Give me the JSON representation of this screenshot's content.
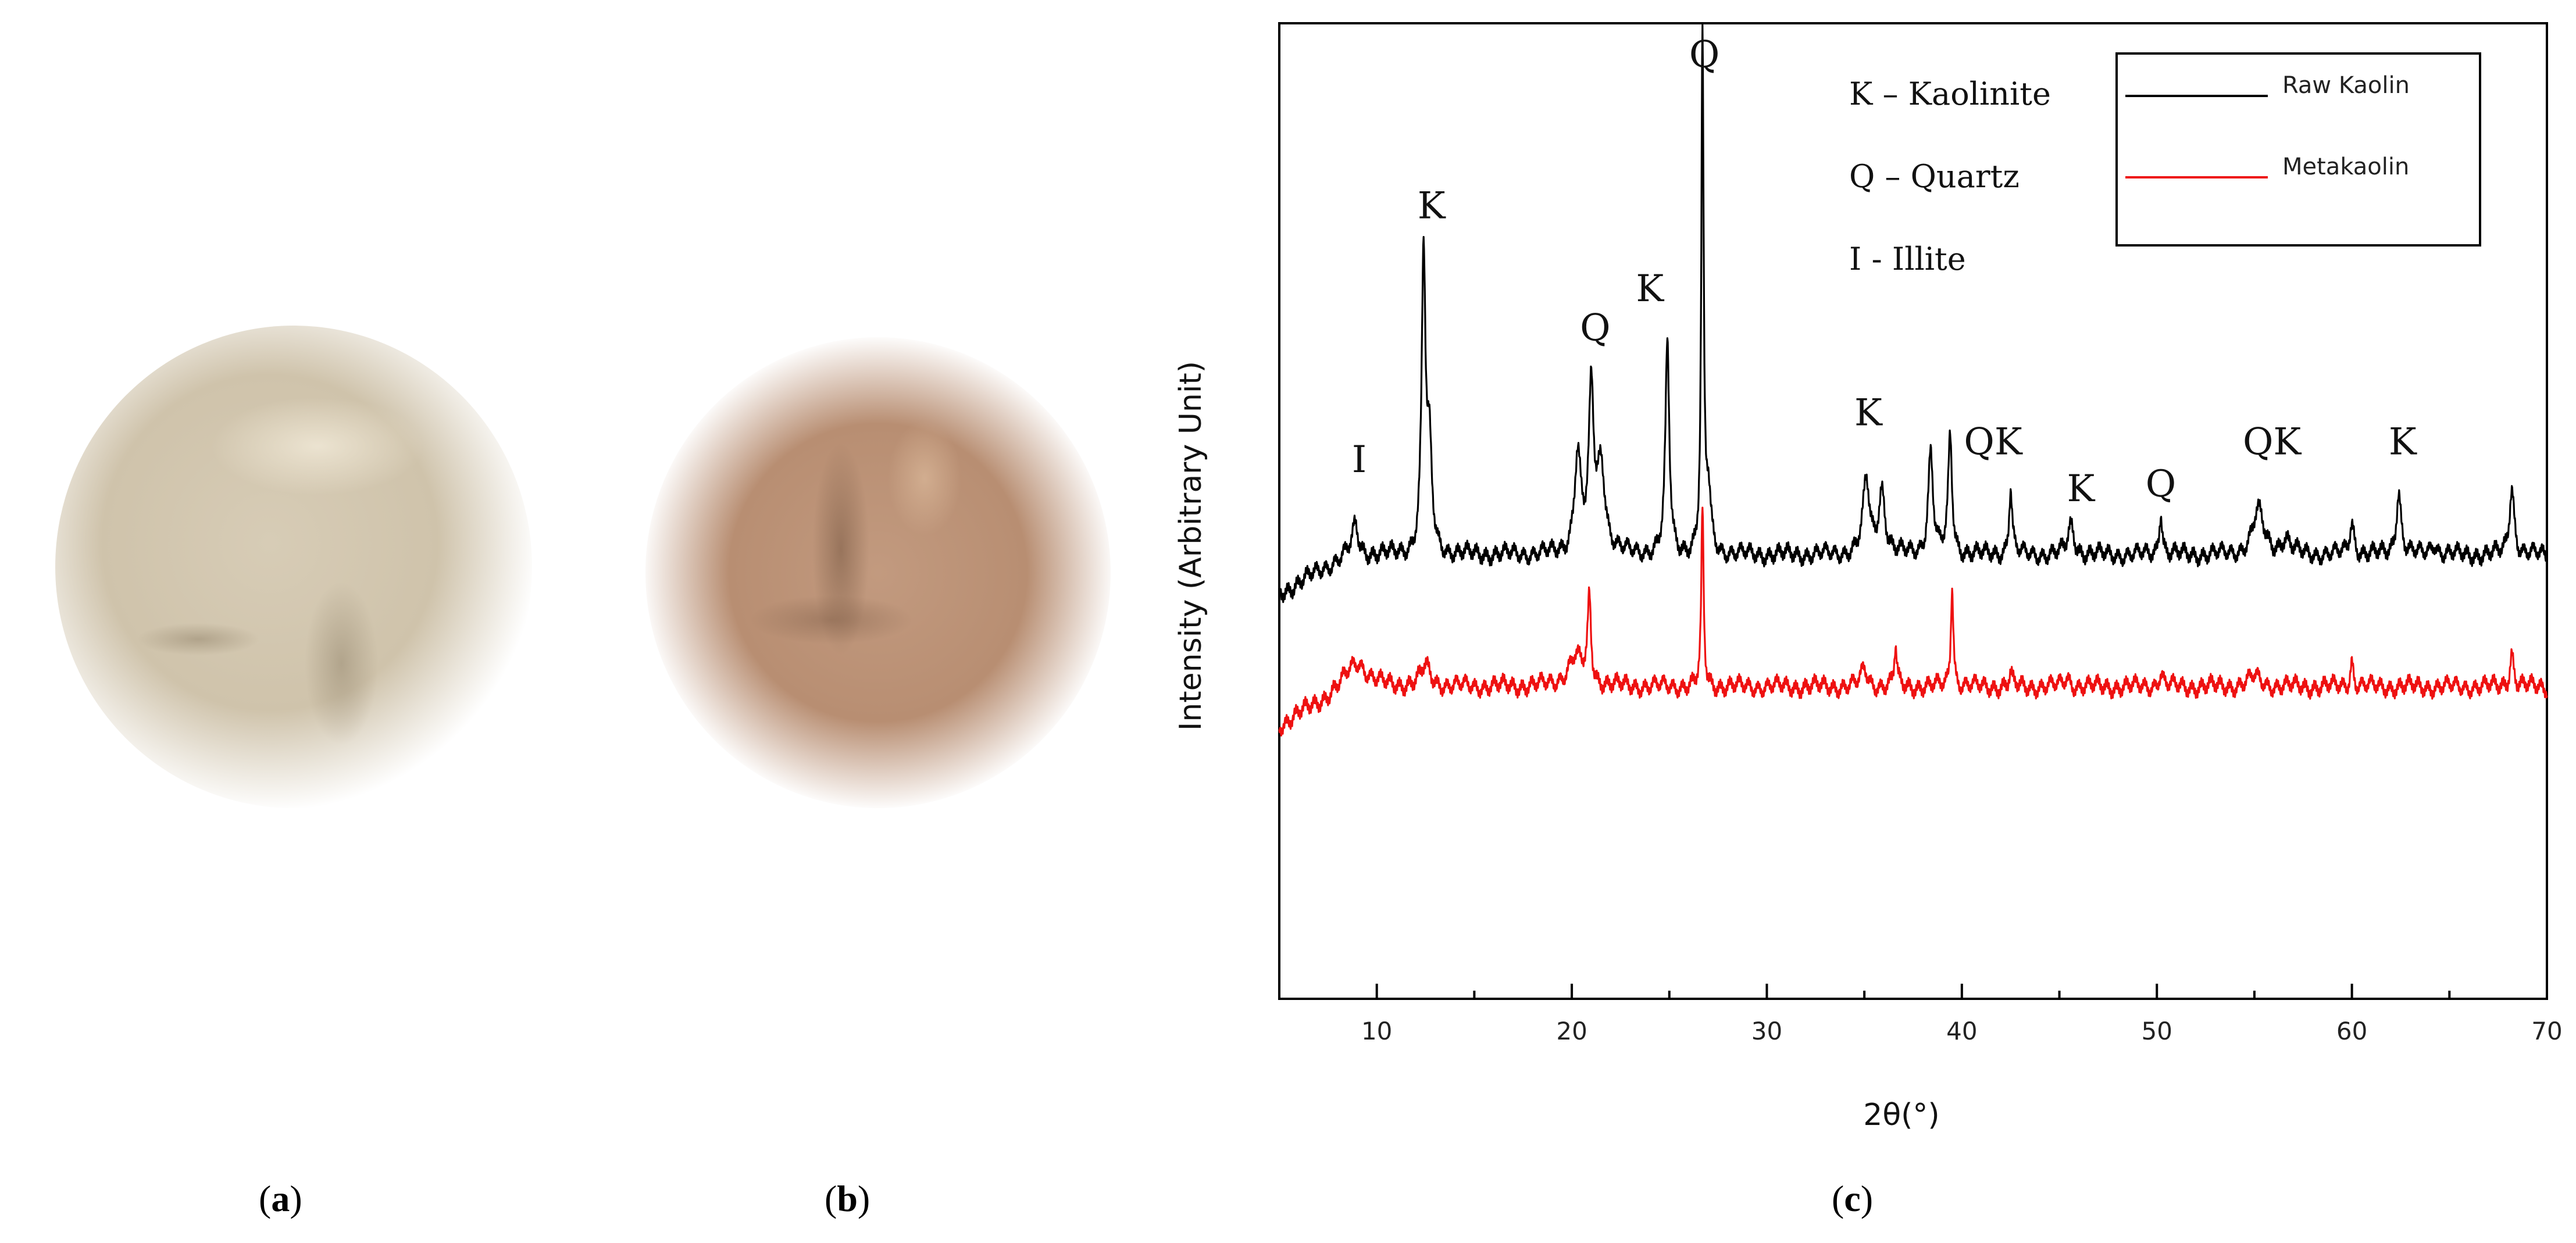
{
  "panels": {
    "a": {
      "label_open": "(",
      "label_letter": "a",
      "label_close": ")"
    },
    "b": {
      "label_open": "(",
      "label_letter": "b",
      "label_close": ")"
    },
    "c": {
      "label_open": "(",
      "label_letter": "c",
      "label_close": ")"
    }
  },
  "photos": {
    "a": {
      "color": "#d2c7b0"
    },
    "b": {
      "color": "#bb9176"
    }
  },
  "chart_data": {
    "type": "line",
    "xlabel": "2θ(°)",
    "ylabel": "Intensity (Arbitrary Unit)",
    "xlim": [
      5,
      70
    ],
    "ylim": [
      0,
      100
    ],
    "xticks": [
      10,
      20,
      30,
      40,
      50,
      60,
      70
    ],
    "grid": false,
    "legend_position": "top-right",
    "series": [
      {
        "name": "Raw Kaolin",
        "color": "#000000",
        "baseline": 45.5,
        "peaks": [
          {
            "x": 8.9,
            "h": 3.0,
            "w": 0.18
          },
          {
            "x": 12.4,
            "h": 30.5,
            "w": 0.12
          },
          {
            "x": 12.7,
            "h": 10.0,
            "w": 0.15
          },
          {
            "x": 20.3,
            "h": 10.0,
            "w": 0.2
          },
          {
            "x": 21.0,
            "h": 16.0,
            "w": 0.15
          },
          {
            "x": 21.5,
            "h": 9.0,
            "w": 0.25
          },
          {
            "x": 24.9,
            "h": 21.5,
            "w": 0.12
          },
          {
            "x": 26.7,
            "h": 52.0,
            "w": 0.07
          },
          {
            "x": 27.0,
            "h": 6.0,
            "w": 0.15
          },
          {
            "x": 35.1,
            "h": 7.5,
            "w": 0.2
          },
          {
            "x": 35.9,
            "h": 6.5,
            "w": 0.2
          },
          {
            "x": 38.4,
            "h": 10.5,
            "w": 0.15
          },
          {
            "x": 39.4,
            "h": 12.0,
            "w": 0.12
          },
          {
            "x": 42.5,
            "h": 6.8,
            "w": 0.1
          },
          {
            "x": 45.6,
            "h": 3.0,
            "w": 0.2
          },
          {
            "x": 50.2,
            "h": 4.5,
            "w": 0.1
          },
          {
            "x": 55.2,
            "h": 4.5,
            "w": 0.35
          },
          {
            "x": 56.6,
            "h": 1.5,
            "w": 0.3
          },
          {
            "x": 60.0,
            "h": 3.2,
            "w": 0.15
          },
          {
            "x": 62.4,
            "h": 6.5,
            "w": 0.15
          },
          {
            "x": 64.2,
            "h": 1.2,
            "w": 0.2
          },
          {
            "x": 68.2,
            "h": 7.0,
            "w": 0.15
          }
        ]
      },
      {
        "name": "Metakaolin",
        "color": "#ee1111",
        "baseline": 32.0,
        "peaks": [
          {
            "x": 9.0,
            "h": 2.5,
            "w": 0.6
          },
          {
            "x": 12.5,
            "h": 2.0,
            "w": 0.3
          },
          {
            "x": 20.2,
            "h": 3.0,
            "w": 0.5
          },
          {
            "x": 20.9,
            "h": 8.5,
            "w": 0.1
          },
          {
            "x": 26.7,
            "h": 18.0,
            "w": 0.07
          },
          {
            "x": 35.0,
            "h": 1.8,
            "w": 0.2
          },
          {
            "x": 36.6,
            "h": 4.0,
            "w": 0.08
          },
          {
            "x": 39.5,
            "h": 10.5,
            "w": 0.08
          },
          {
            "x": 42.5,
            "h": 1.2,
            "w": 0.1
          },
          {
            "x": 45.4,
            "h": 0.9,
            "w": 0.2
          },
          {
            "x": 50.2,
            "h": 1.3,
            "w": 0.15
          },
          {
            "x": 55.0,
            "h": 1.0,
            "w": 0.4
          },
          {
            "x": 60.0,
            "h": 2.6,
            "w": 0.1
          },
          {
            "x": 68.2,
            "h": 3.5,
            "w": 0.12
          }
        ]
      }
    ],
    "peak_labels": [
      {
        "text": "I",
        "x": 9.1,
        "y": 54
      },
      {
        "text": "K",
        "x": 12.8,
        "y": 80
      },
      {
        "text": "Q",
        "x": 21.2,
        "y": 67.5
      },
      {
        "text": "K",
        "x": 24.0,
        "y": 71.5
      },
      {
        "text": "Q",
        "x": 26.8,
        "y": 95.5
      },
      {
        "text": "K",
        "x": 35.2,
        "y": 58.8
      },
      {
        "text": "QK",
        "x": 41.6,
        "y": 55.8
      },
      {
        "text": "K",
        "x": 46.1,
        "y": 51
      },
      {
        "text": "Q",
        "x": 50.2,
        "y": 51.5
      },
      {
        "text": "QK",
        "x": 55.9,
        "y": 55.8
      },
      {
        "text": "K",
        "x": 62.6,
        "y": 55.8
      }
    ],
    "key_entries": [
      "K – Kaolinite",
      "Q – Quartz",
      "I - Illite"
    ]
  }
}
